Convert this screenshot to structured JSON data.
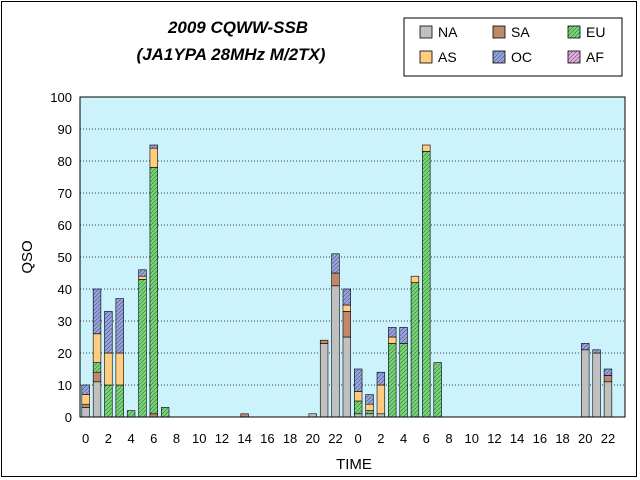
{
  "chart_data": {
    "type": "bar",
    "stacked": true,
    "title": "2009 CQWW-SSB",
    "subtitle": "(JA1YPA  28MHz M/2TX)",
    "xlabel": "TIME",
    "ylabel": "QSO",
    "ylim": [
      0,
      100
    ],
    "yticks": [
      0,
      10,
      20,
      30,
      40,
      50,
      60,
      70,
      80,
      90,
      100
    ],
    "grid": true,
    "legend_position": "top-right",
    "categories": [
      0,
      1,
      2,
      3,
      4,
      5,
      6,
      7,
      8,
      9,
      10,
      11,
      12,
      13,
      14,
      15,
      16,
      17,
      18,
      19,
      20,
      21,
      22,
      23,
      0,
      1,
      2,
      3,
      4,
      5,
      6,
      7,
      8,
      9,
      10,
      11,
      12,
      13,
      14,
      15,
      16,
      17,
      18,
      19,
      20,
      21,
      22,
      23
    ],
    "xtick_labels": [
      "0",
      "",
      "2",
      "",
      "4",
      "",
      "6",
      "",
      "8",
      "",
      "10",
      "",
      "12",
      "",
      "14",
      "",
      "16",
      "",
      "18",
      "",
      "20",
      "",
      "22",
      "",
      "0",
      "",
      "2",
      "",
      "4",
      "",
      "6",
      "",
      "8",
      "",
      "10",
      "",
      "12",
      "",
      "14",
      "",
      "16",
      "",
      "18",
      "",
      "20",
      "",
      "22",
      ""
    ],
    "series": [
      {
        "name": "NA",
        "color": "#c0c0c0",
        "pattern": "solid",
        "values": [
          3,
          11,
          0,
          0,
          0,
          0,
          0,
          0,
          0,
          0,
          0,
          0,
          0,
          0,
          0,
          0,
          0,
          0,
          0,
          0,
          1,
          23,
          41,
          25,
          1,
          1,
          1,
          0,
          0,
          0,
          0,
          0,
          0,
          0,
          0,
          0,
          0,
          0,
          0,
          0,
          0,
          0,
          0,
          0,
          21,
          20,
          11,
          0
        ]
      },
      {
        "name": "SA",
        "color": "#c0876a",
        "pattern": "solid",
        "values": [
          1,
          3,
          0,
          0,
          0,
          0,
          1,
          0,
          0,
          0,
          0,
          0,
          0,
          0,
          1,
          0,
          0,
          0,
          0,
          0,
          0,
          1,
          4,
          8,
          0,
          0,
          0,
          0,
          0,
          0,
          0,
          0,
          0,
          0,
          0,
          0,
          0,
          0,
          0,
          0,
          0,
          0,
          0,
          0,
          0,
          0,
          2,
          0
        ]
      },
      {
        "name": "EU",
        "color": "#7dd87d",
        "pattern": "hatch",
        "values": [
          0,
          3,
          10,
          10,
          2,
          43,
          77,
          3,
          0,
          0,
          0,
          0,
          0,
          0,
          0,
          0,
          0,
          0,
          0,
          0,
          0,
          0,
          0,
          0,
          4,
          1,
          0,
          23,
          23,
          42,
          83,
          17,
          0,
          0,
          0,
          0,
          0,
          0,
          0,
          0,
          0,
          0,
          0,
          0,
          0,
          0,
          0,
          0
        ]
      },
      {
        "name": "AS",
        "color": "#ffcc80",
        "pattern": "solid",
        "values": [
          3,
          9,
          10,
          10,
          0,
          1,
          6,
          0,
          0,
          0,
          0,
          0,
          0,
          0,
          0,
          0,
          0,
          0,
          0,
          0,
          0,
          0,
          0,
          2,
          3,
          2,
          9,
          2,
          0,
          2,
          2,
          0,
          0,
          0,
          0,
          0,
          0,
          0,
          0,
          0,
          0,
          0,
          0,
          0,
          0,
          0,
          0,
          0
        ]
      },
      {
        "name": "OC",
        "color": "#a0a0f0",
        "pattern": "hatch",
        "values": [
          3,
          14,
          13,
          17,
          0,
          2,
          1,
          0,
          0,
          0,
          0,
          0,
          0,
          0,
          0,
          0,
          0,
          0,
          0,
          0,
          0,
          0,
          6,
          5,
          7,
          3,
          4,
          3,
          5,
          0,
          0,
          0,
          0,
          0,
          0,
          0,
          0,
          0,
          0,
          0,
          0,
          0,
          0,
          0,
          2,
          1,
          2,
          0
        ]
      },
      {
        "name": "AF",
        "color": "#f0a8f0",
        "pattern": "hatch",
        "values": [
          0,
          0,
          0,
          0,
          0,
          0,
          0,
          0,
          0,
          0,
          0,
          0,
          0,
          0,
          0,
          0,
          0,
          0,
          0,
          0,
          0,
          0,
          0,
          0,
          0,
          0,
          0,
          0,
          0,
          0,
          0,
          0,
          0,
          0,
          0,
          0,
          0,
          0,
          0,
          0,
          0,
          0,
          0,
          0,
          0,
          0,
          0,
          0
        ]
      }
    ]
  },
  "colors": {
    "plot_background": "#ccf2fb",
    "gridline": "#000000",
    "frame": "#000000"
  }
}
